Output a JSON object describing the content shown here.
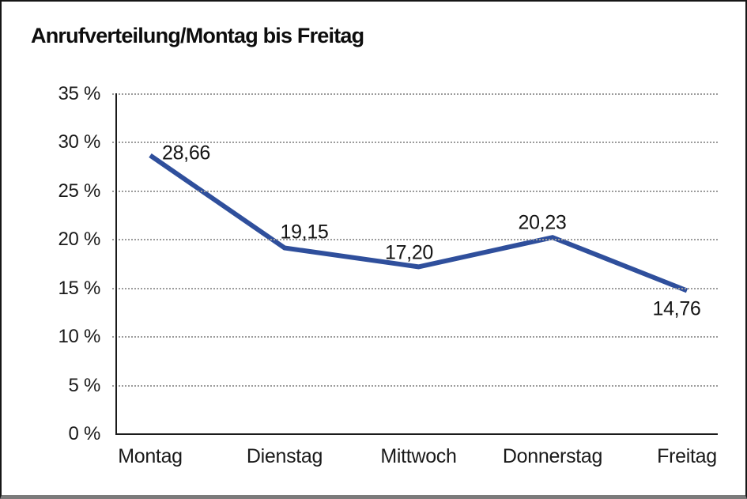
{
  "chart_data": {
    "type": "line",
    "title": "Anrufverteilung/Montag bis Freitag",
    "categories": [
      "Montag",
      "Dienstag",
      "Mittwoch",
      "Donnerstag",
      "Freitag"
    ],
    "values": [
      28.66,
      19.15,
      17.2,
      20.23,
      14.76
    ],
    "value_labels": [
      "28,66",
      "19,15",
      "17,20",
      "20,23",
      "14,76"
    ],
    "xlabel": "",
    "ylabel": "",
    "ylim": [
      0,
      35
    ],
    "ytick_step": 5,
    "ytick_labels": [
      "0 %",
      "5 %",
      "10 %",
      "15 %",
      "20 %",
      "25 %",
      "30 %",
      "35 %"
    ],
    "grid": "horizontal-dotted",
    "legend": "none",
    "line_color": "#2F4F9C",
    "background_color": "#ffffff"
  }
}
